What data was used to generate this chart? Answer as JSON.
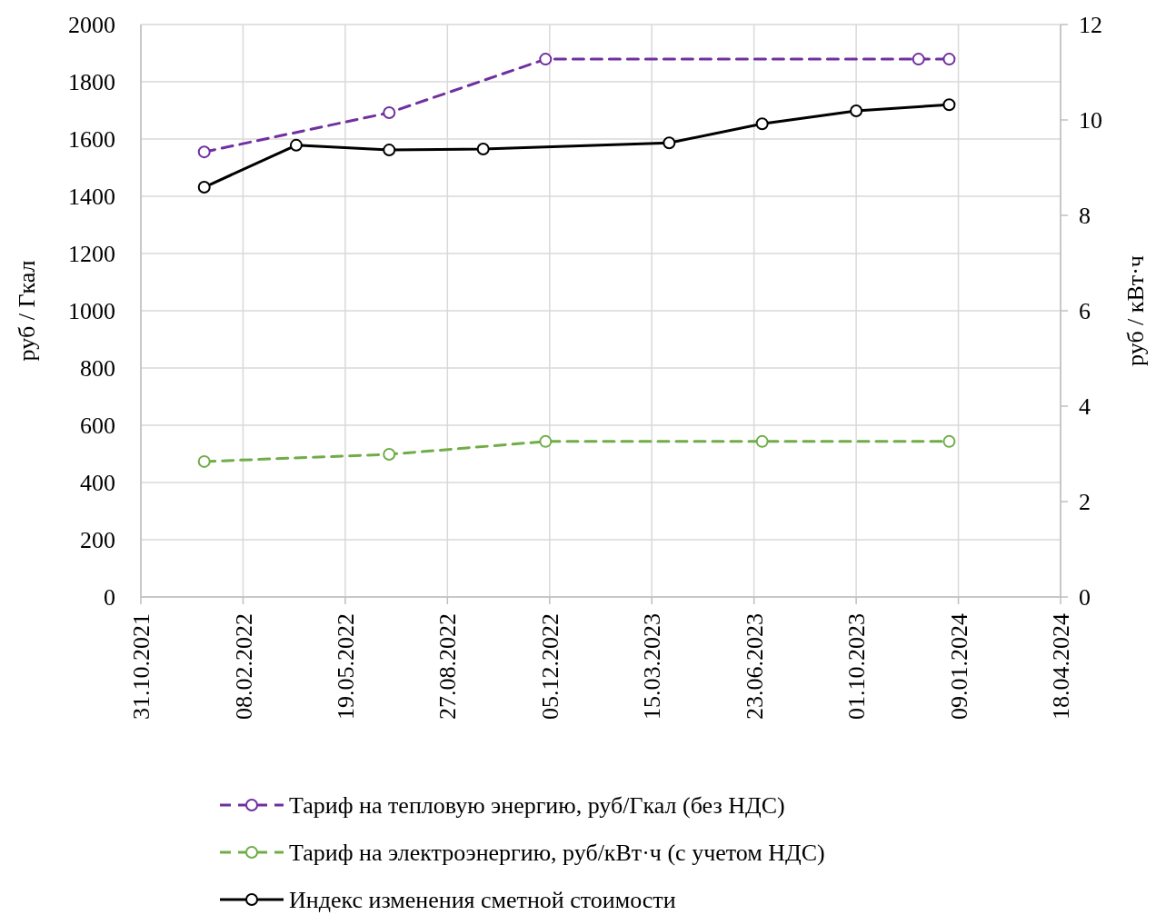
{
  "chart_data": {
    "type": "line",
    "ylabel": "руб / Гкал",
    "y2label": "руб / кВт·ч",
    "xlim": [
      "2021-10-31",
      "2024-04-18"
    ],
    "xticks": [
      {
        "value": "2021-10-31",
        "label": "31.10.2021"
      },
      {
        "value": "2022-02-08",
        "label": "08.02.2022"
      },
      {
        "value": "2022-05-19",
        "label": "19.05.2022"
      },
      {
        "value": "2022-08-27",
        "label": "27.08.2022"
      },
      {
        "value": "2022-12-05",
        "label": "05.12.2022"
      },
      {
        "value": "2023-03-15",
        "label": "15.03.2023"
      },
      {
        "value": "2023-06-23",
        "label": "23.06.2023"
      },
      {
        "value": "2023-10-01",
        "label": "01.10.2023"
      },
      {
        "value": "2024-01-09",
        "label": "09.01.2024"
      },
      {
        "value": "2024-04-18",
        "label": "18.04.2024"
      }
    ],
    "ylim": [
      0,
      2000
    ],
    "yticks": [
      0,
      200,
      400,
      600,
      800,
      1000,
      1200,
      1400,
      1600,
      1800,
      2000
    ],
    "y2lim": [
      0,
      12
    ],
    "y2ticks": [
      0,
      2,
      4,
      6,
      8,
      10,
      12
    ],
    "grid": true,
    "legend": "bottom",
    "marker": "circle",
    "series": [
      {
        "name": "Тариф на тепловую энергию, руб/Гкал (без НДС)",
        "color": "#7030a0",
        "line_style": "dashed",
        "x": [
          "2022-01-01",
          "2022-07-01",
          "2022-12-01",
          "2023-12-01",
          "2023-12-31"
        ],
        "values": [
          1555,
          1692,
          1879,
          1879,
          1879
        ]
      },
      {
        "name": "Тариф на электроэнергию, руб/кВт·ч (с учетом НДС)",
        "color": "#70ad47",
        "line_style": "dashed",
        "axis": "y2",
        "x": [
          "2022-01-01",
          "2022-07-01",
          "2022-12-01",
          "2023-07-01",
          "2023-12-31"
        ],
        "values": [
          2.84,
          2.99,
          3.26,
          3.26,
          3.26
        ]
      },
      {
        "name": "Индекс изменения сметной стоимости",
        "color": "#000000",
        "line_style": "solid",
        "axis": "y2",
        "x": [
          "2022-01-01",
          "2022-04-01",
          "2022-07-01",
          "2022-10-01",
          "2023-04-01",
          "2023-07-01",
          "2023-10-01",
          "2023-12-31"
        ],
        "values": [
          8.59,
          9.47,
          9.37,
          9.39,
          9.52,
          9.92,
          10.19,
          10.32
        ]
      }
    ]
  }
}
